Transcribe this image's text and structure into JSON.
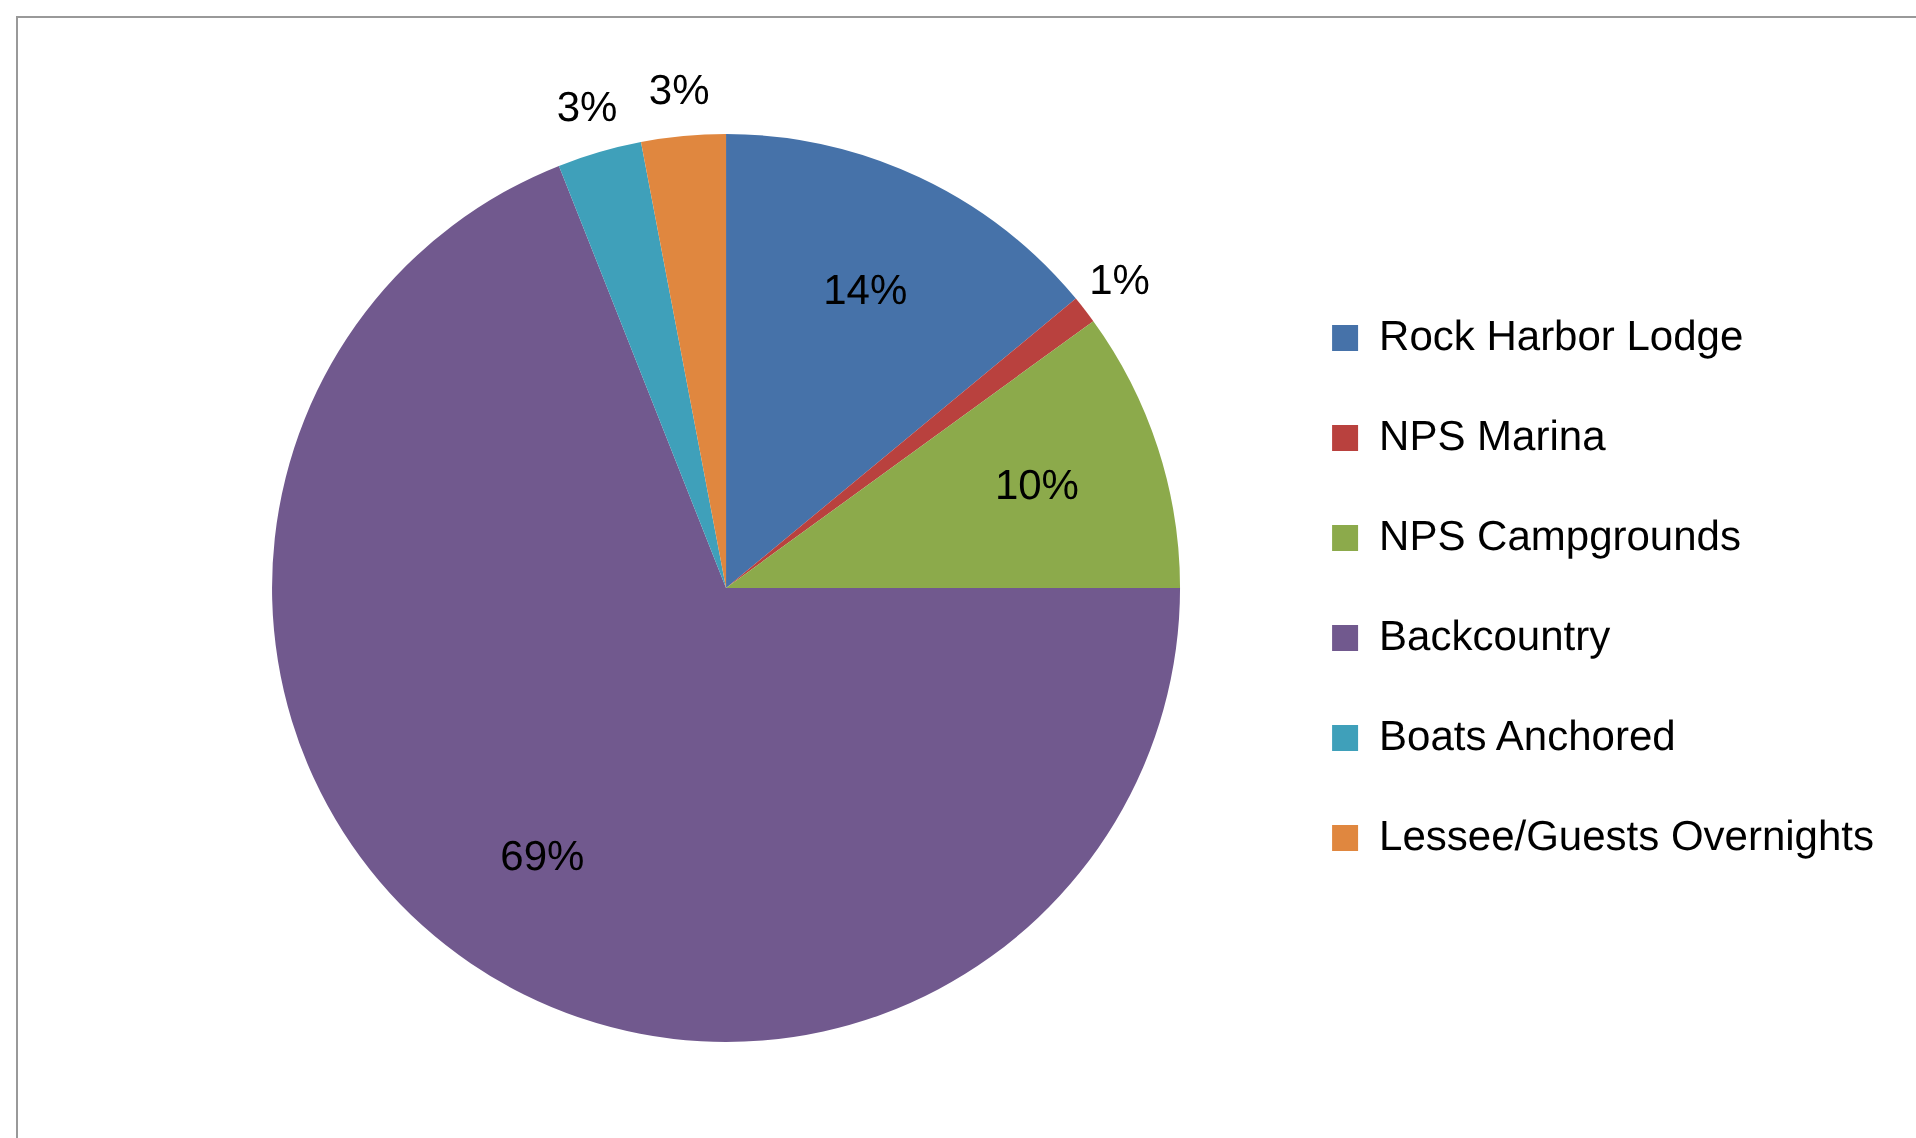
{
  "chart_data": {
    "type": "pie",
    "categories": [
      "Rock Harbor Lodge",
      "NPS Marina",
      "NPS Campgrounds",
      "Backcountry",
      "Boats Anchored",
      "Lessee/Guests Overnights"
    ],
    "values": [
      14,
      1,
      10,
      69,
      3,
      3
    ],
    "colors": [
      "#4672a9",
      "#b9413e",
      "#8caa4b",
      "#71598e",
      "#3fa0ba",
      "#e0873f"
    ],
    "value_labels": [
      "14%",
      "1%",
      "10%",
      "69%",
      "3%",
      "3%"
    ],
    "legend": "right"
  }
}
